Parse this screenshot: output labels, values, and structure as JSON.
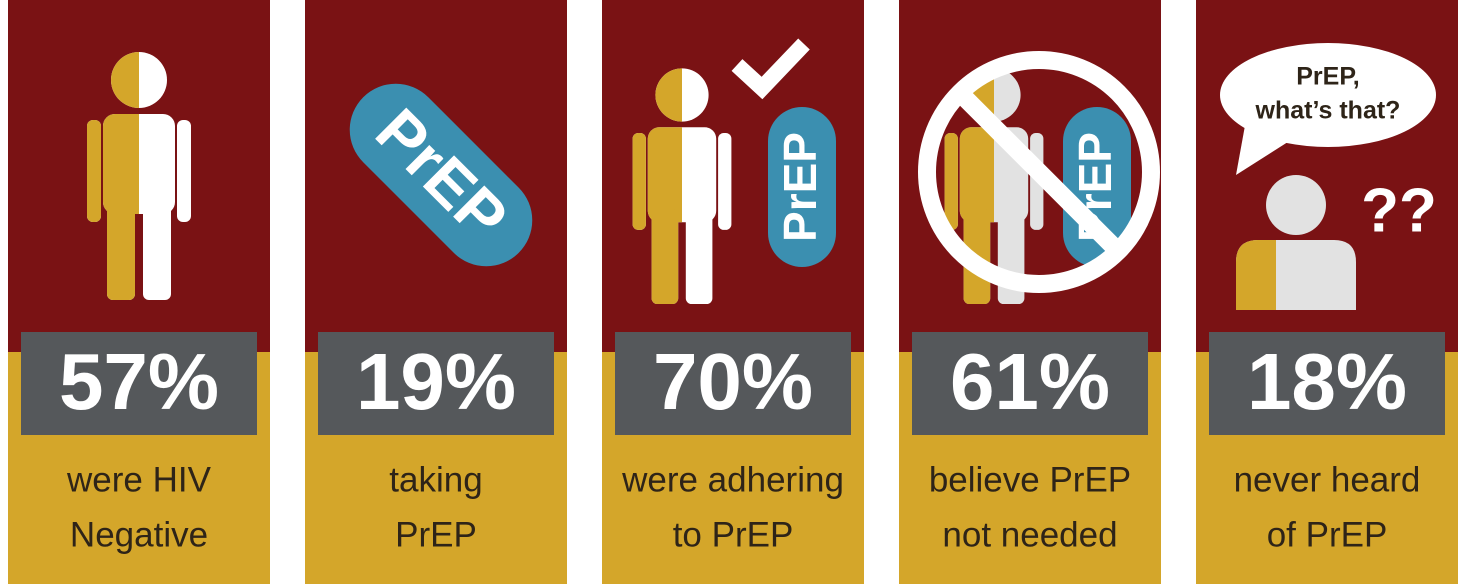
{
  "panels": [
    {
      "stat": "57%",
      "caption": [
        "were HIV",
        "Negative"
      ]
    },
    {
      "icon_text": "PrEP",
      "stat": "19%",
      "caption": [
        "taking",
        "PrEP"
      ]
    },
    {
      "icon_text": "PrEP",
      "stat": "70%",
      "caption": [
        "were adhering",
        "to PrEP"
      ]
    },
    {
      "icon_text": "PrEP",
      "stat": "61%",
      "caption": [
        "believe PrEP",
        "not needed"
      ]
    },
    {
      "bubble": [
        "PrEP,",
        "what’s that?"
      ],
      "marks": "??",
      "stat": "18%",
      "caption": [
        "never heard",
        "of PrEP"
      ]
    }
  ]
}
